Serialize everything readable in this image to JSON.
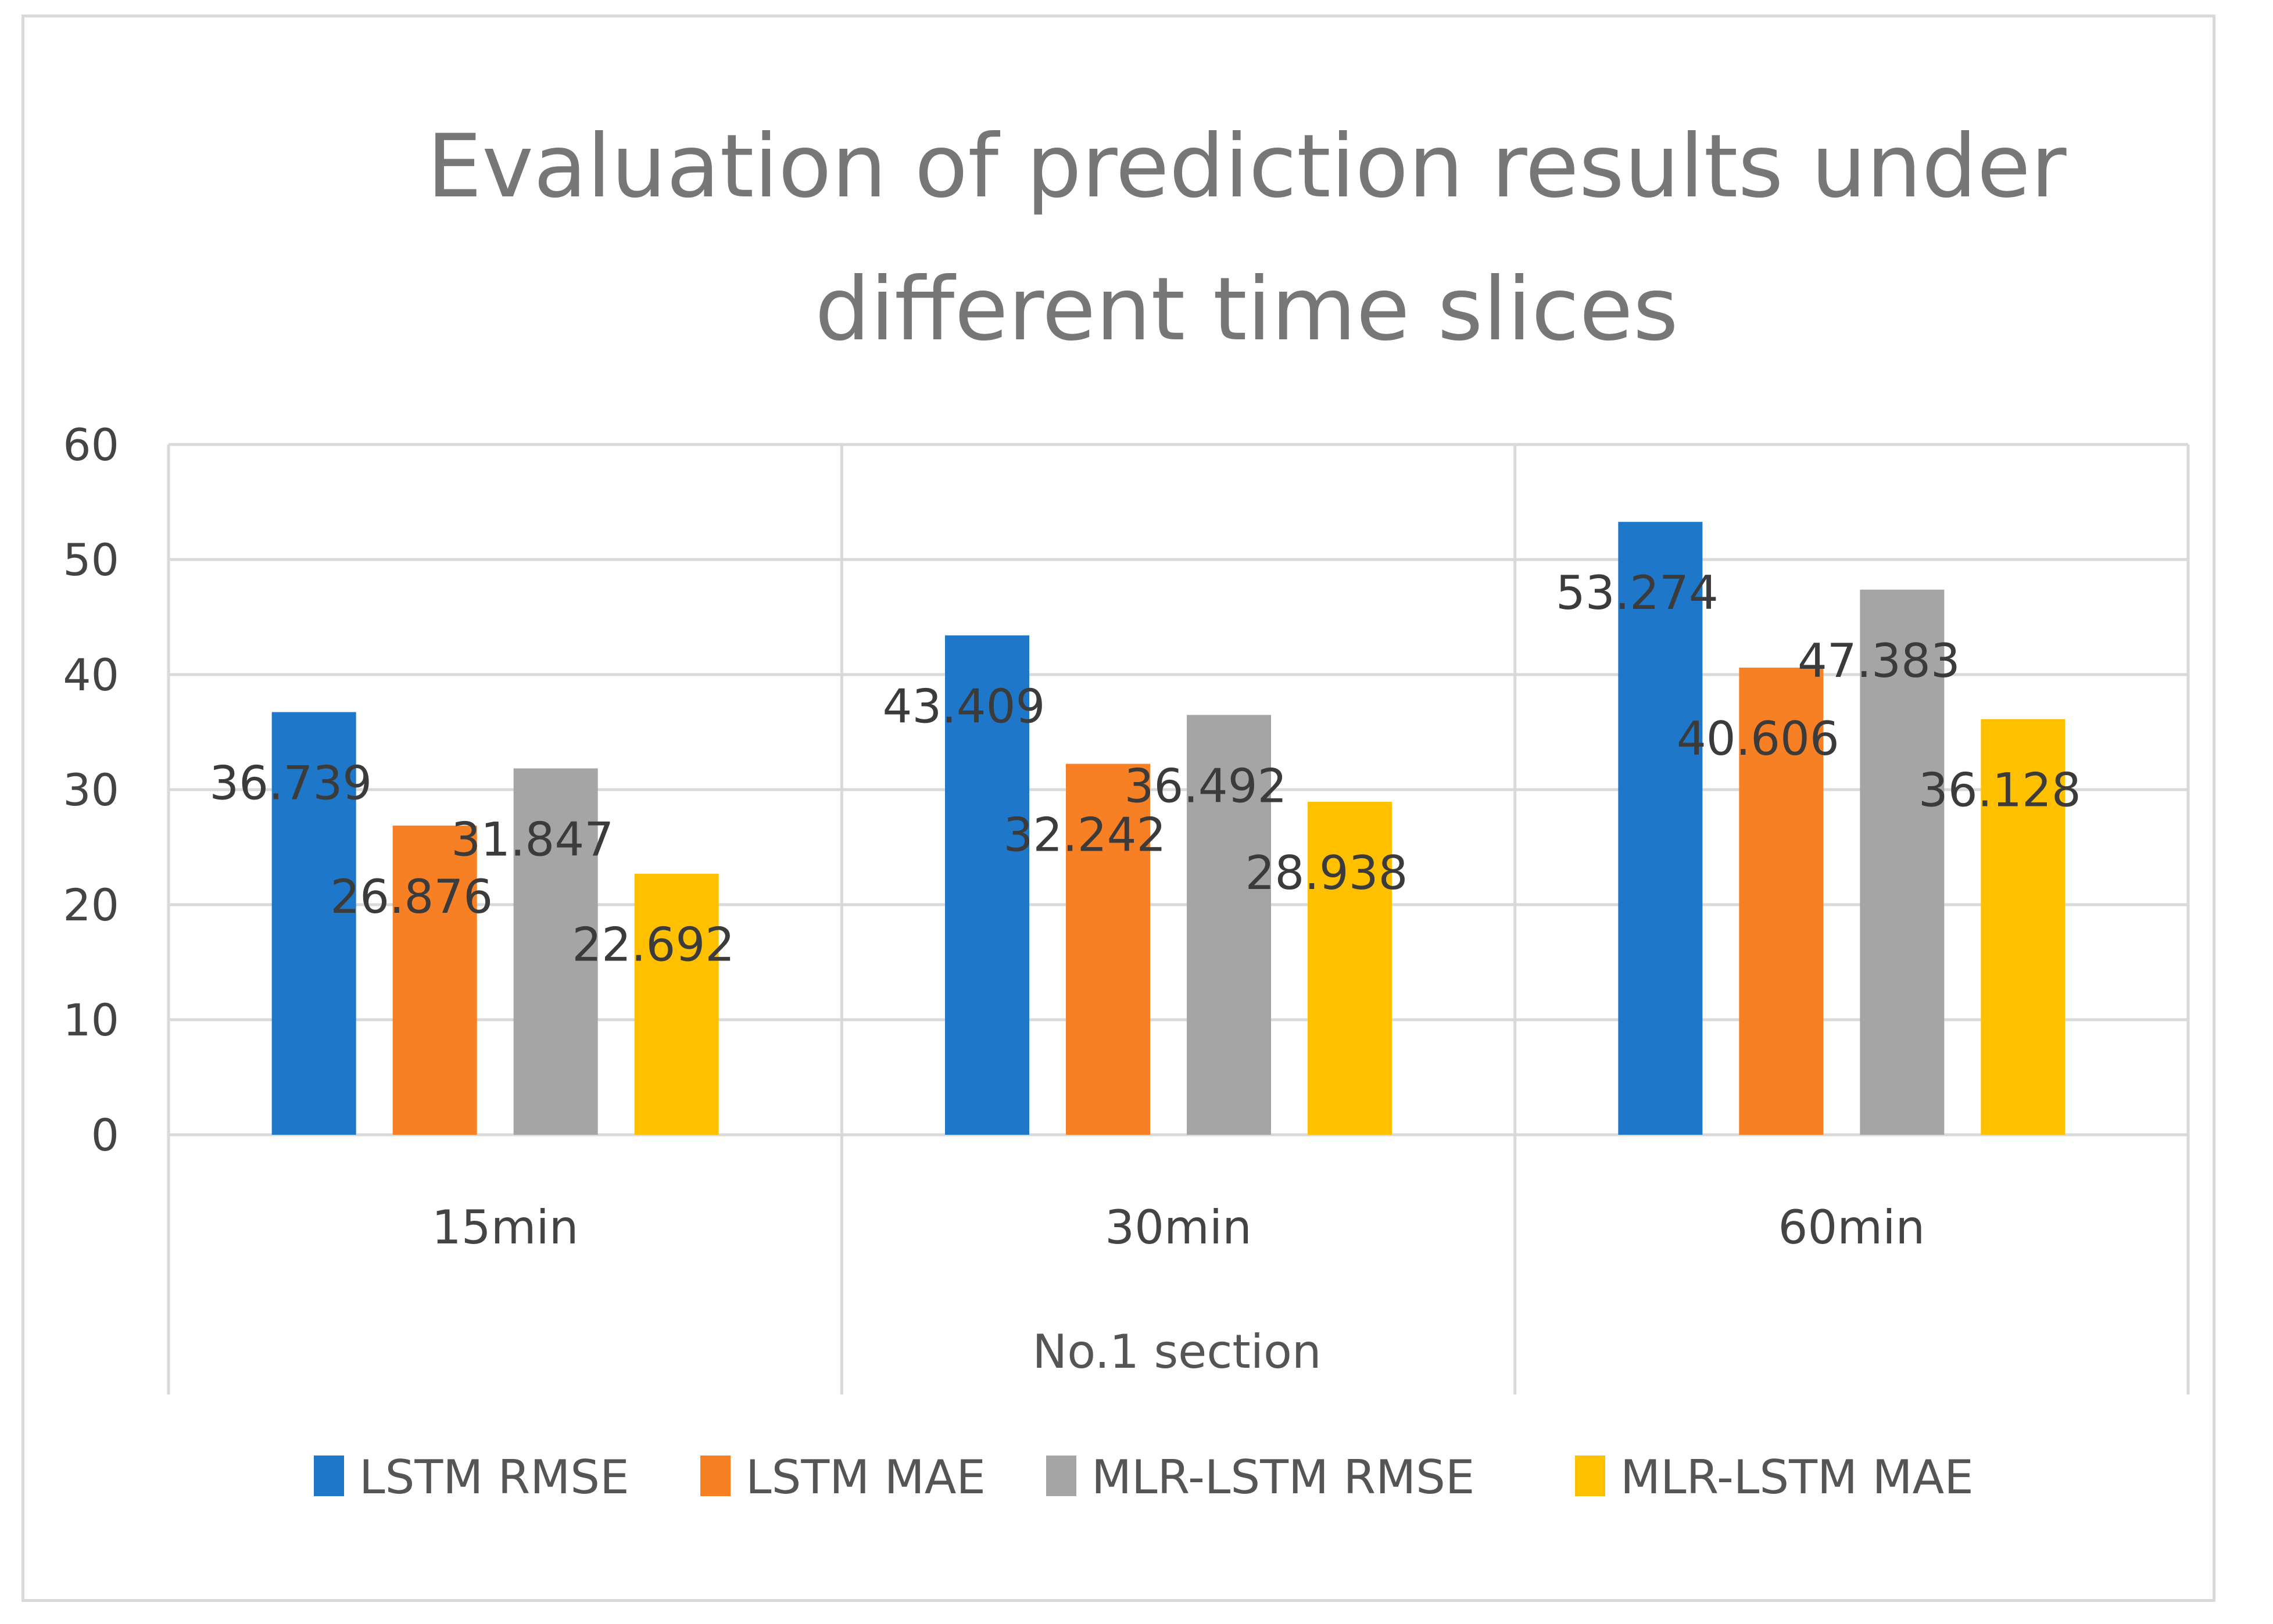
{
  "chart_data": {
    "type": "bar",
    "title": "Evaluation of prediction results under different time slices",
    "title_lines": [
      "Evaluation of prediction results under",
      "different time slices"
    ],
    "xlabel": "No.1 section",
    "ylabel": "",
    "ylim": [
      0,
      60
    ],
    "yticks": [
      0,
      10,
      20,
      30,
      40,
      50,
      60
    ],
    "grid": true,
    "legend_position": "bottom",
    "categories": [
      "15min",
      "30min",
      "60min"
    ],
    "series": [
      {
        "name": "LSTM RMSE",
        "color": "#1f77c9",
        "values": [
          36.739,
          43.409,
          53.274
        ],
        "labels": [
          "36.739",
          "43.409",
          "53.274"
        ]
      },
      {
        "name": "LSTM MAE",
        "color": "#f77f24",
        "values": [
          26.876,
          32.242,
          40.606
        ],
        "labels": [
          "26.876",
          "32.242",
          "40.606"
        ]
      },
      {
        "name": "MLR-LSTM RMSE",
        "color": "#a5a5a5",
        "values": [
          31.847,
          36.492,
          47.383
        ],
        "labels": [
          "31.847",
          "36.492",
          "47.383"
        ]
      },
      {
        "name": "MLR-LSTM MAE",
        "color": "#ffc000",
        "values": [
          22.692,
          28.938,
          36.128
        ],
        "labels": [
          "22.692",
          "28.938",
          "36.128"
        ]
      }
    ]
  }
}
